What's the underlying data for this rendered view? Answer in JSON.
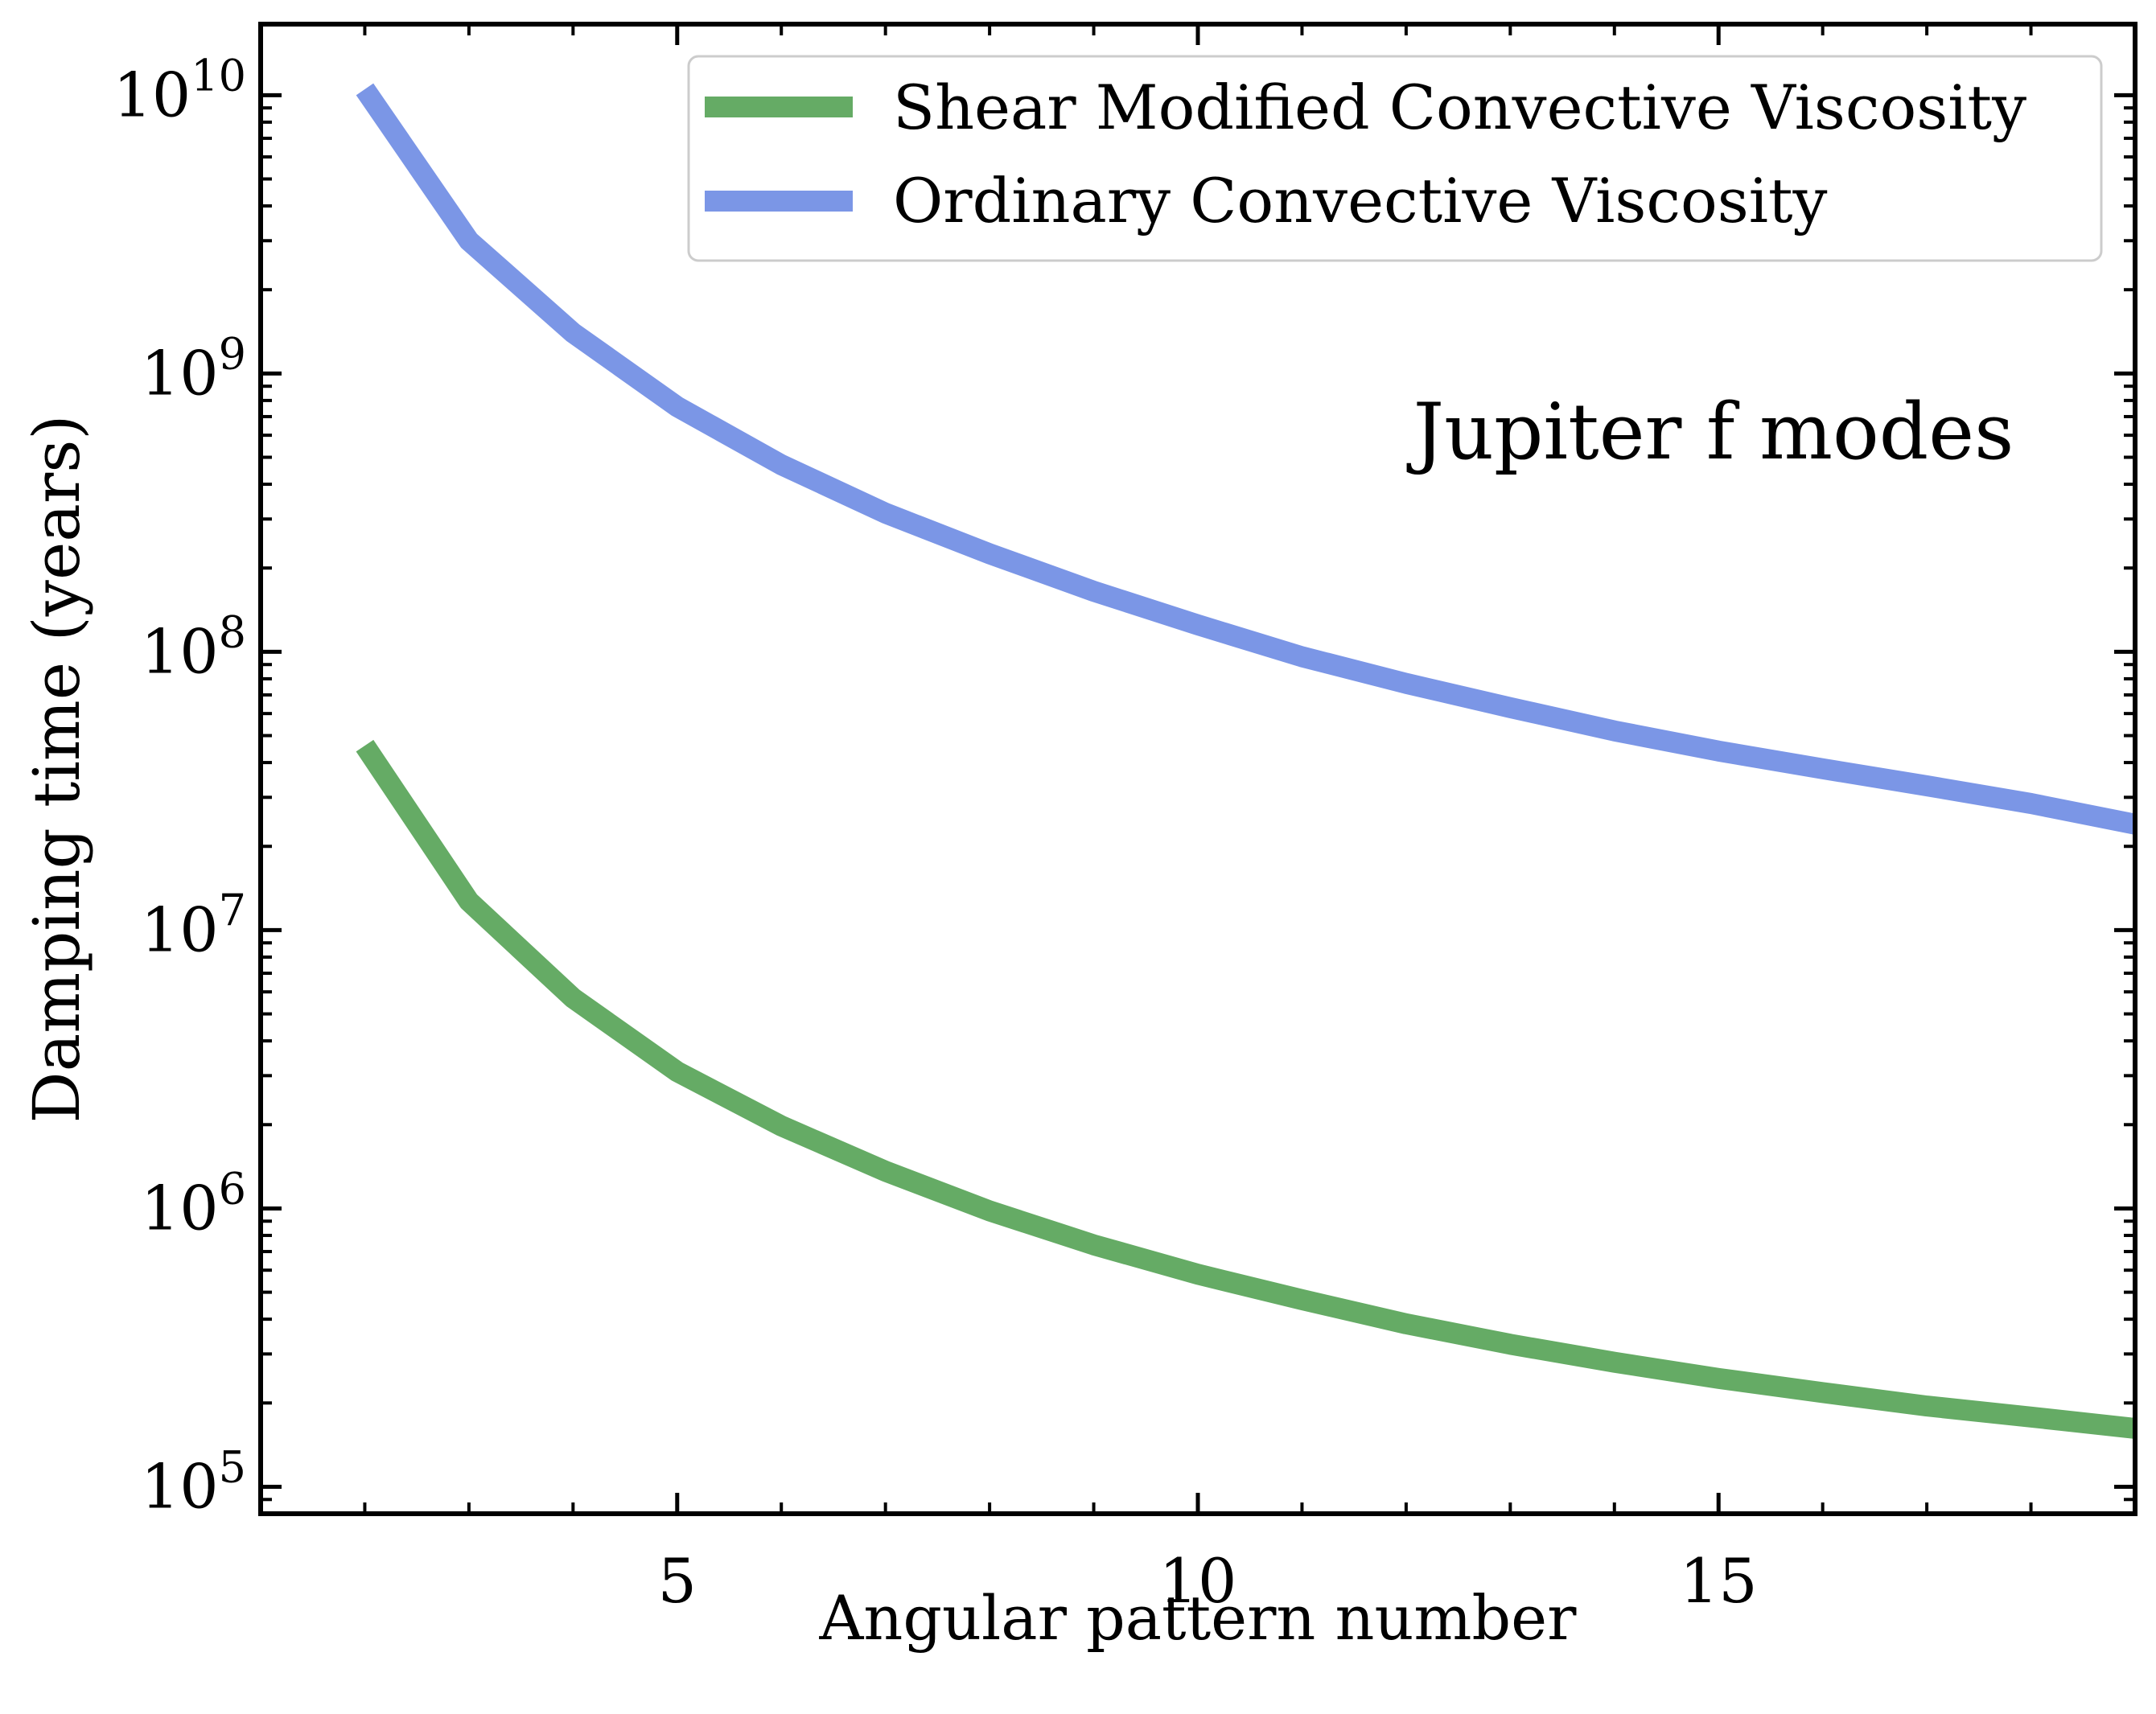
{
  "chart_data": {
    "type": "line",
    "title": "",
    "annotation": "Jupiter f modes",
    "xlabel": "Angular pattern number",
    "ylabel": "Damping time (years)",
    "xlim": [
      1,
      19
    ],
    "ylim": [
      80000,
      18000000000
    ],
    "yscale": "log",
    "x_ticks": [
      5,
      10,
      15
    ],
    "x_tick_labels": [
      "5",
      "10",
      "15"
    ],
    "y_ticks": [
      {
        "value": 100000,
        "base": "10",
        "exp": "5"
      },
      {
        "value": 1000000,
        "base": "10",
        "exp": "6"
      },
      {
        "value": 10000000,
        "base": "10",
        "exp": "7"
      },
      {
        "value": 100000000,
        "base": "10",
        "exp": "8"
      },
      {
        "value": 1000000000,
        "base": "10",
        "exp": "9"
      },
      {
        "value": 10000000000,
        "base": "10",
        "exp": "10"
      }
    ],
    "legend_position": "top-right",
    "grid": false,
    "x": [
      2,
      3,
      4,
      5,
      6,
      7,
      8,
      9,
      10,
      11,
      12,
      13,
      14,
      15,
      16,
      17,
      18,
      19
    ],
    "series": [
      {
        "name": "Shear Modified Convective Viscosity",
        "color": "#65ab65",
        "values": [
          46000000,
          12700000,
          5700000,
          3100000,
          1980000,
          1360000,
          980000,
          740000,
          580000,
          470000,
          385000,
          325000,
          280000,
          245000,
          218000,
          195000,
          178000,
          162000
        ]
      },
      {
        "name": "Ordinary Convective Viscosity",
        "color": "#7b96e6",
        "values": [
          10500000000,
          3000000000,
          1400000000,
          760000000,
          470000000,
          315000000,
          225000000,
          165000000,
          125000000,
          96000000,
          77000000,
          63000000,
          52000000,
          44000000,
          38000000,
          33000000,
          28500000,
          24000000
        ]
      }
    ]
  }
}
